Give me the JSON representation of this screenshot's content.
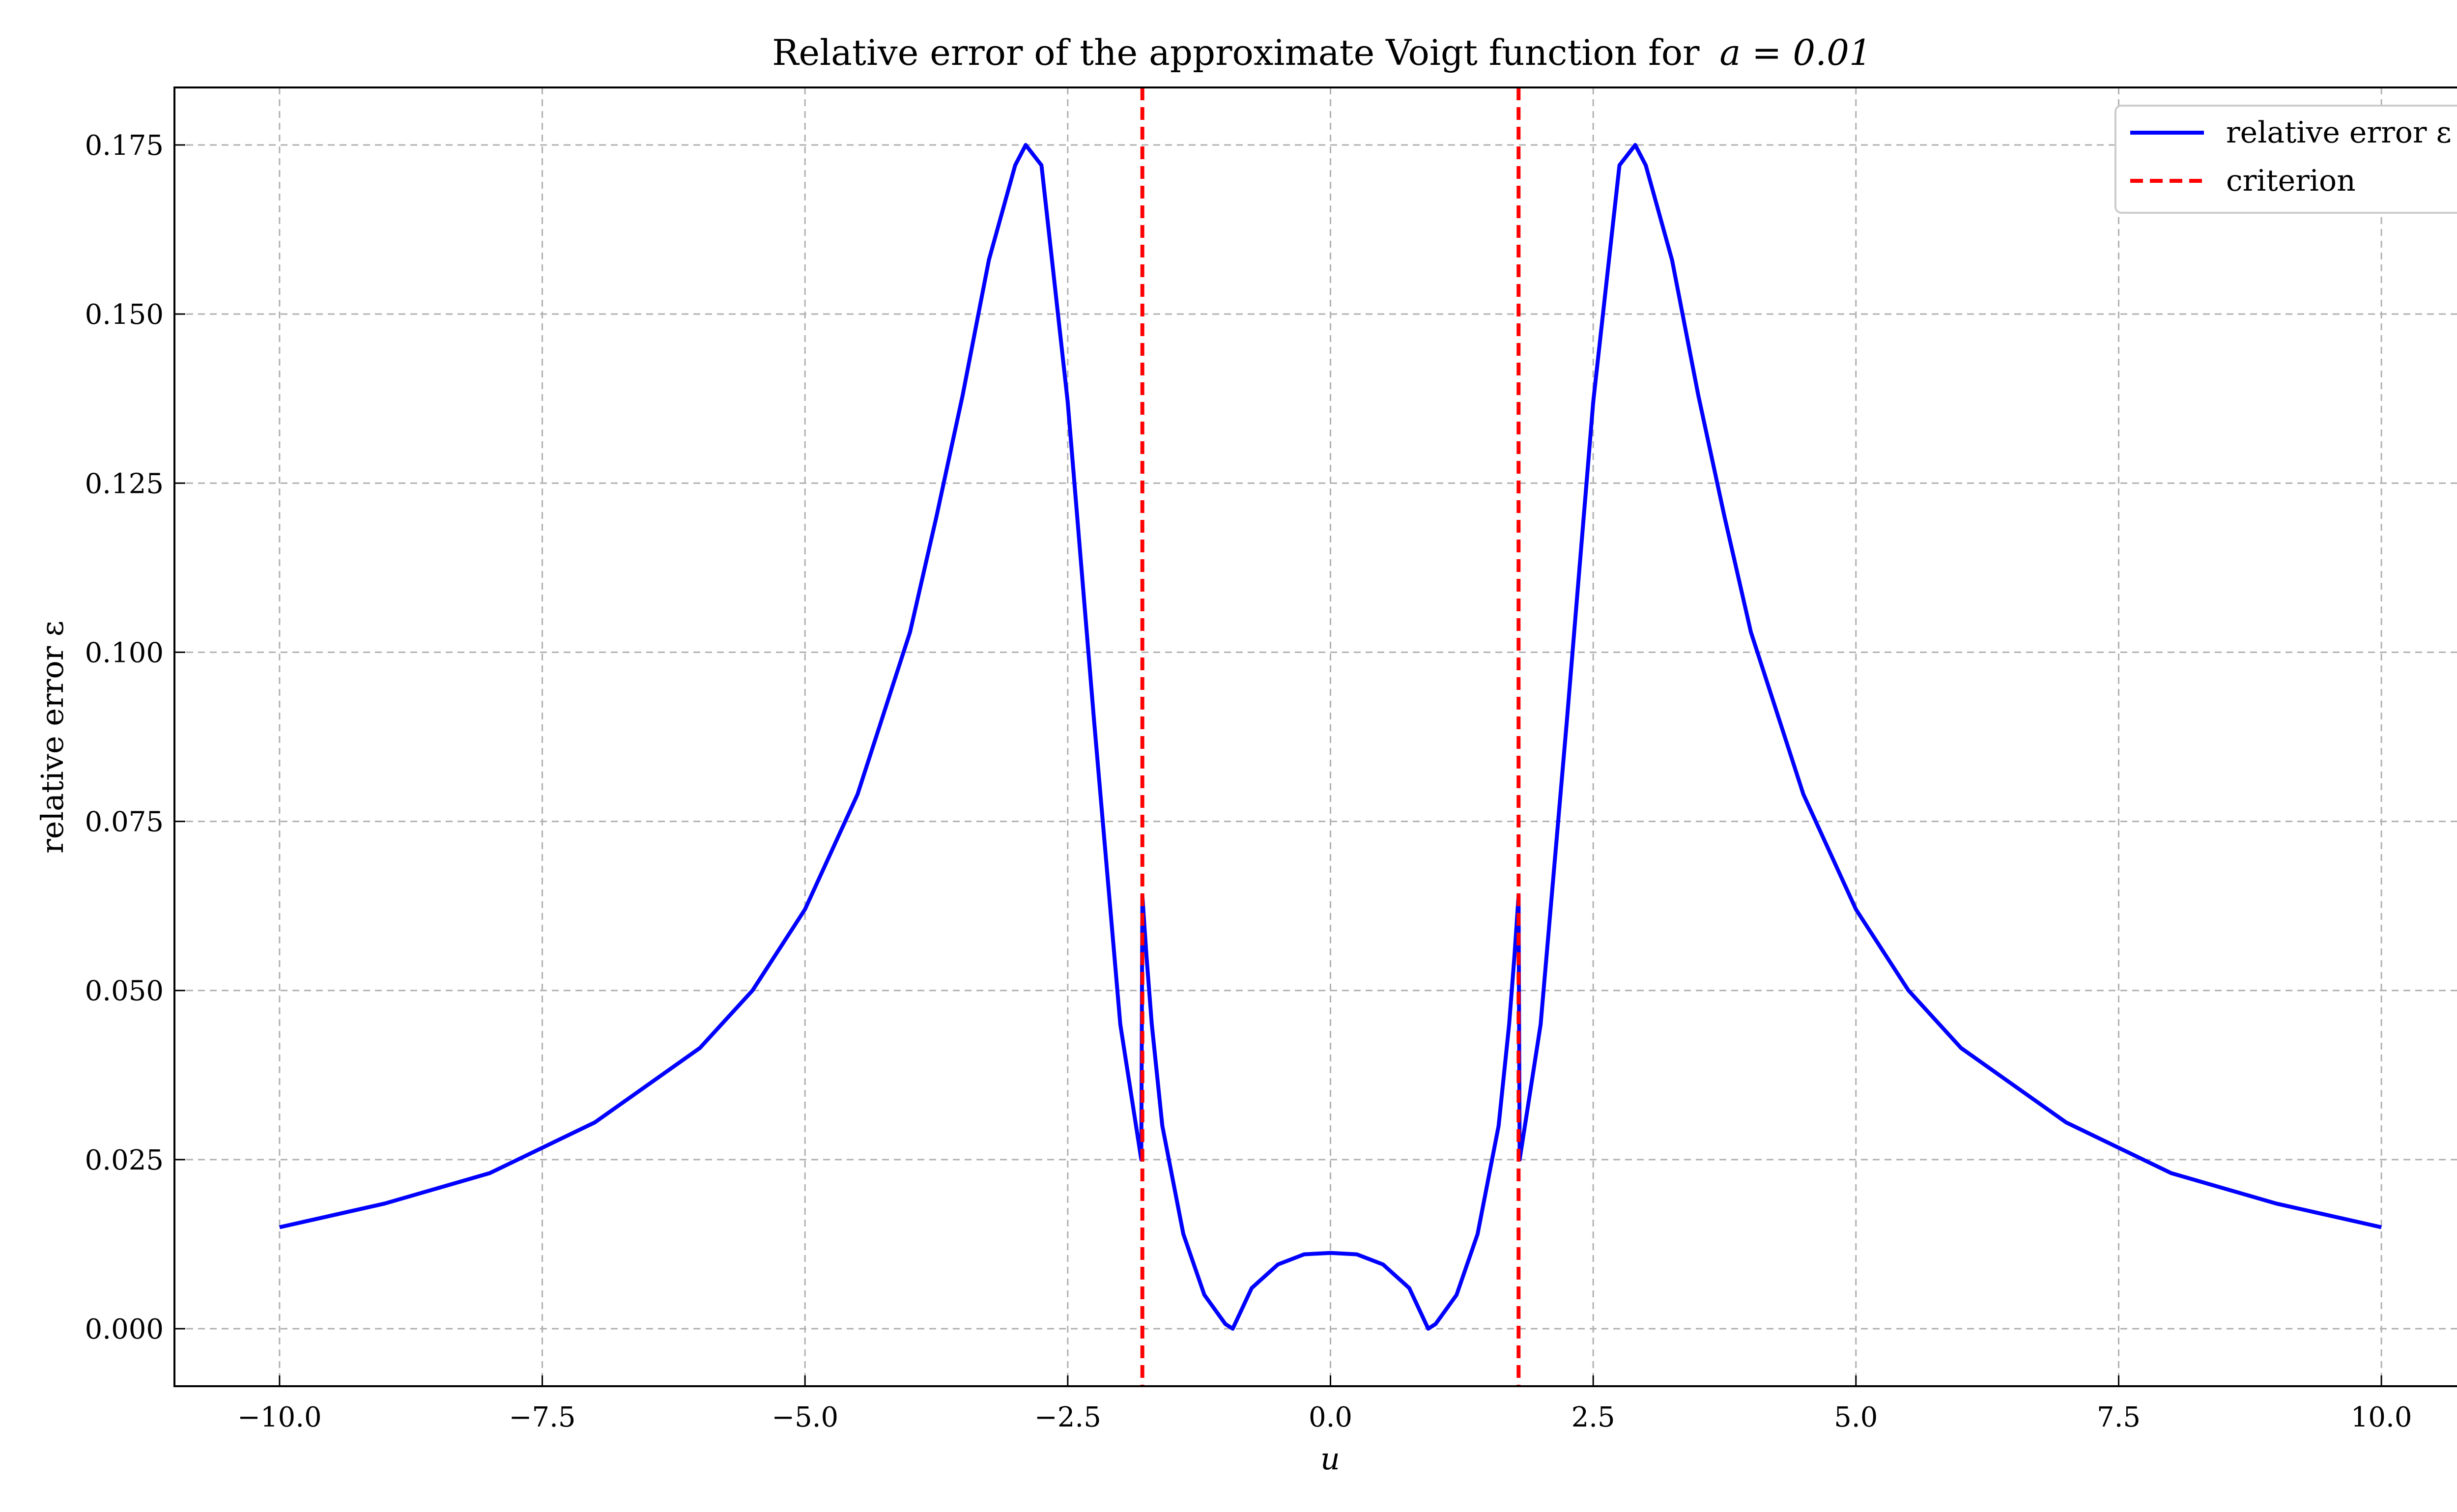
{
  "chart_data": {
    "type": "line",
    "title": "Relative error of the approximate Voigt function for",
    "title_math": "a = 0.01",
    "xlabel": "u",
    "ylabel": "relative error ε",
    "xlim": [
      -11,
      11
    ],
    "ylim": [
      -0.0085,
      0.1835
    ],
    "grid": true,
    "legend_position": "top-right",
    "x_ticks": [
      -10.0,
      -7.5,
      -5.0,
      -2.5,
      0.0,
      2.5,
      5.0,
      7.5,
      10.0
    ],
    "x_tick_labels": [
      "−10.0",
      "−7.5",
      "−5.0",
      "−2.5",
      "0.0",
      "2.5",
      "5.0",
      "7.5",
      "10.0"
    ],
    "y_ticks": [
      0.0,
      0.025,
      0.05,
      0.075,
      0.1,
      0.125,
      0.15,
      0.175
    ],
    "y_tick_labels": [
      "0.000",
      "0.025",
      "0.050",
      "0.075",
      "0.100",
      "0.125",
      "0.150",
      "0.175"
    ],
    "series": [
      {
        "name": "relative error ε",
        "color": "#0000ff",
        "style": "solid",
        "x": [
          -10.0,
          -9.0,
          -8.0,
          -7.0,
          -6.0,
          -5.5,
          -5.0,
          -4.5,
          -4.0,
          -3.75,
          -3.5,
          -3.25,
          -3.0,
          -2.9,
          -2.75,
          -2.5,
          -2.25,
          -2.0,
          -1.8,
          -1.79,
          -1.75,
          -1.7,
          -1.6,
          -1.4,
          -1.2,
          -1.0,
          -0.93,
          -0.75,
          -0.5,
          -0.25,
          0.0,
          0.25,
          0.5,
          0.75,
          0.93,
          1.0,
          1.2,
          1.4,
          1.6,
          1.7,
          1.75,
          1.79,
          1.8,
          2.0,
          2.25,
          2.5,
          2.75,
          2.9,
          3.0,
          3.25,
          3.5,
          3.75,
          4.0,
          4.5,
          5.0,
          5.5,
          6.0,
          7.0,
          8.0,
          9.0,
          10.0
        ],
        "y": [
          0.015,
          0.0185,
          0.023,
          0.0305,
          0.0415,
          0.05,
          0.062,
          0.079,
          0.103,
          0.12,
          0.138,
          0.158,
          0.172,
          0.175,
          0.172,
          0.137,
          0.09,
          0.045,
          0.025,
          0.064,
          0.055,
          0.045,
          0.03,
          0.014,
          0.005,
          0.0007,
          0.0,
          0.006,
          0.0095,
          0.011,
          0.0112,
          0.011,
          0.0095,
          0.006,
          0.0,
          0.0007,
          0.005,
          0.014,
          0.03,
          0.045,
          0.055,
          0.064,
          0.025,
          0.045,
          0.09,
          0.137,
          0.172,
          0.175,
          0.172,
          0.158,
          0.138,
          0.12,
          0.103,
          0.079,
          0.062,
          0.05,
          0.0415,
          0.0305,
          0.023,
          0.0185,
          0.015
        ]
      }
    ],
    "vlines": {
      "name": "criterion",
      "color": "#ff0000",
      "style": "dashed",
      "x": [
        -1.79,
        1.79
      ]
    }
  }
}
